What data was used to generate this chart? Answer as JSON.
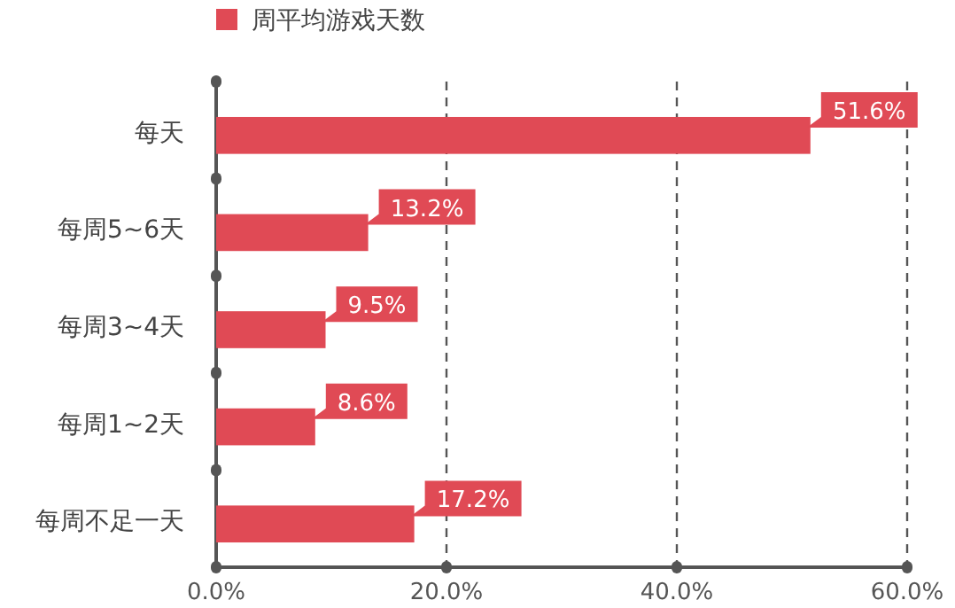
{
  "chart_data": {
    "type": "bar",
    "orientation": "horizontal",
    "categories": [
      "每天",
      "每周5~6天",
      "每周3~4天",
      "每周1~2天",
      "每周不足一天"
    ],
    "series": [
      {
        "name": "周平均游戏天数",
        "color": "#e04a55",
        "values": [
          51.6,
          13.2,
          9.5,
          8.6,
          17.2
        ],
        "value_labels": [
          "51.6%",
          "13.2%",
          "9.5%",
          "8.6%",
          "17.2%"
        ]
      }
    ],
    "xlim": [
      0,
      60
    ],
    "xticks": [
      {
        "value": 0,
        "label": "0.0%"
      },
      {
        "value": 20,
        "label": "20.0%"
      },
      {
        "value": 40,
        "label": "40.0%"
      },
      {
        "value": 60,
        "label": "60.0%"
      }
    ],
    "grid": "x",
    "legend": "top"
  }
}
